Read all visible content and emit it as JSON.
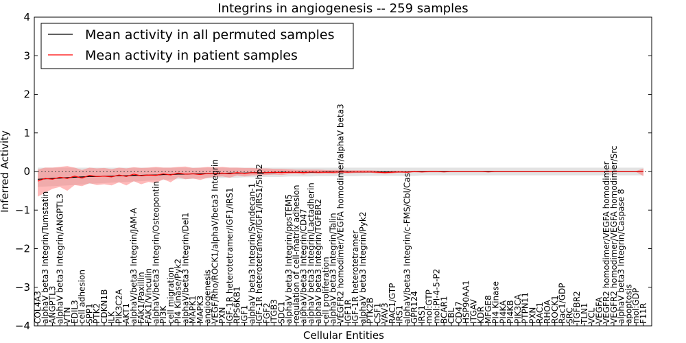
{
  "chart_data": {
    "type": "line",
    "title": "Integrins in angiogenesis -- 259 samples",
    "xlabel": "Cellular Entities",
    "ylabel": "Inferred Activity",
    "ylim": [
      -4,
      4
    ],
    "yticks": [
      -4,
      -3,
      -2,
      -1,
      0,
      1,
      2,
      3,
      4
    ],
    "ytick_labels": [
      "−4",
      "−3",
      "−2",
      "−1",
      "0",
      "1",
      "2",
      "3",
      "4"
    ],
    "grid": false,
    "legend_position": "top-left",
    "legend": [
      {
        "label": "Mean activity in all permuted samples",
        "color": "#000000"
      },
      {
        "label": "Mean activity in patient samples",
        "color": "#ff0000"
      }
    ],
    "categories": [
      "COL4A3",
      "alphaV beta3 Integrin/Tumstatin",
      "ANGPTL3",
      "alphaV beta3 Integrin/ANGPTL3",
      "VTN",
      "EDIL3",
      "cell adhesion",
      "SPP1",
      "PTK2",
      "CDKN1B",
      "ILK",
      "PIK3C2A",
      "AKT1",
      "alphaV/beta3 Integrin/JAM-A",
      "FAK1/Paxillin",
      "FAK1/Vinculin",
      "alphaV/beta3 Integrin/Osteopontin",
      "PI3K",
      "cell migration",
      "PI4 Kinase/Pyk2",
      "alphaV/beta3 Integrin/Del1",
      "MAPK1",
      "MAPK3",
      "angiogenesis",
      "VEGF/Rho/ROCK1/alphaV/beta3 Integrin",
      "PXN",
      "IGF-1R heterotetramer/IGF1/IRS1",
      "RPS6KB1",
      "IGF1",
      "alphaV beta3 Integrin/Syndecan-1",
      "IGF-1R heterotetramer/IGF1/IRS1/Shp2",
      "FGF2",
      "ITGB3",
      "SDC1",
      "alphaV beta3 Integrin/ppsTEM5",
      "regulation of cell-matrix adhesion",
      "alphaV/beta3 Integrin/CD47",
      "alphaV beta3 Integrin/Lactadherin",
      "alphaV beta3 Integrin/TGFBR2",
      "cell proliferation",
      "alphaV beta3 Integrin/Talin",
      "VEGFR2 homodimer/VEGFA homodimer/alphaV beta3",
      "IGF1R",
      "IGF-1R heterotetramer",
      "alphaV beta3 Integrin/Pyk2",
      "PTK2B",
      "CSF1",
      "VAV3",
      "RAC1/GTP",
      "IRS1",
      "alphaV/beta3 Integrin/c-FMS/Cbl/Cas",
      "GPR124",
      "IRS1",
      "mol:GTP",
      "mol:PI-4-5-P2",
      "BCAR1",
      "CBL",
      "CD47",
      "HSP90AA1",
      "ITGAV",
      "KDR",
      "MFGE8",
      "PI4 Kinase",
      "PI4KA",
      "PI4KB",
      "PIK3CA",
      "PTPN11",
      "PXN",
      "RAC1",
      "RHOA",
      "ROCK1",
      "Rac1/GDP",
      "SRC",
      "TGFBR2",
      "TLN1",
      "VCL",
      "VEGFA",
      "VEGFR2 homodimer/VEGFA homodimer",
      "VEGFR2 homodimer/VEGFA homodimer/Src",
      "alphaV beta3 Integrin/Caspase 8",
      "apoptosis",
      "mol:GDP",
      "F11R"
    ],
    "series": [
      {
        "name": "Mean activity in all permuted samples",
        "color": "#000000",
        "values": [
          -0.2,
          -0.19,
          -0.18,
          -0.17,
          -0.16,
          -0.15,
          -0.14,
          -0.13,
          -0.13,
          -0.12,
          -0.12,
          -0.11,
          -0.11,
          -0.1,
          -0.1,
          -0.09,
          -0.09,
          -0.08,
          -0.08,
          -0.07,
          -0.07,
          -0.06,
          -0.06,
          -0.05,
          -0.05,
          -0.05,
          -0.04,
          -0.04,
          -0.04,
          -0.03,
          -0.03,
          -0.03,
          -0.03,
          -0.02,
          -0.02,
          -0.02,
          -0.02,
          -0.02,
          -0.02,
          -0.01,
          -0.01,
          -0.01,
          -0.01,
          -0.01,
          -0.01,
          -0.01,
          -0.01,
          -0.01,
          -0.01,
          -0.01,
          -0.01,
          0,
          0,
          0,
          0,
          0,
          0,
          0,
          0,
          0,
          0,
          0,
          0,
          0,
          0,
          0,
          0,
          0,
          0,
          0,
          0,
          0,
          0,
          0,
          0,
          0,
          0,
          0,
          0,
          0,
          0,
          0,
          0
        ],
        "band_low": [
          -0.4,
          -0.39,
          -0.38,
          -0.37,
          -0.36,
          -0.35,
          -0.34,
          -0.32,
          -0.31,
          -0.3,
          -0.29,
          -0.28,
          -0.27,
          -0.26,
          -0.25,
          -0.24,
          -0.23,
          -0.22,
          -0.21,
          -0.2,
          -0.2,
          -0.19,
          -0.18,
          -0.18,
          -0.17,
          -0.17,
          -0.16,
          -0.16,
          -0.15,
          -0.15,
          -0.15,
          -0.14,
          -0.14,
          -0.14,
          -0.13,
          -0.13,
          -0.13,
          -0.13,
          -0.12,
          -0.12,
          -0.12,
          -0.12,
          -0.12,
          -0.12,
          -0.11,
          -0.11,
          -0.11,
          -0.11,
          -0.11,
          -0.11,
          -0.11,
          -0.11,
          -0.1,
          -0.1,
          -0.1,
          -0.1,
          -0.1,
          -0.1,
          -0.1,
          -0.1,
          -0.1,
          -0.1,
          -0.1,
          -0.1,
          -0.1,
          -0.1,
          -0.1,
          -0.1,
          -0.1,
          -0.1,
          -0.1,
          -0.1,
          -0.1,
          -0.1,
          -0.1,
          -0.1,
          -0.1,
          -0.1,
          -0.1,
          -0.1,
          -0.1,
          -0.1,
          -0.1
        ],
        "band_high": [
          0.1,
          0.1,
          0.1,
          0.1,
          0.1,
          0.1,
          0.1,
          0.1,
          0.1,
          0.1,
          0.1,
          0.1,
          0.1,
          0.1,
          0.1,
          0.1,
          0.1,
          0.1,
          0.1,
          0.1,
          0.1,
          0.1,
          0.1,
          0.1,
          0.1,
          0.1,
          0.1,
          0.1,
          0.1,
          0.1,
          0.1,
          0.1,
          0.1,
          0.1,
          0.1,
          0.1,
          0.1,
          0.1,
          0.1,
          0.1,
          0.1,
          0.1,
          0.1,
          0.1,
          0.1,
          0.1,
          0.1,
          0.1,
          0.1,
          0.1,
          0.1,
          0.1,
          0.1,
          0.1,
          0.1,
          0.1,
          0.1,
          0.1,
          0.1,
          0.1,
          0.1,
          0.1,
          0.1,
          0.1,
          0.1,
          0.1,
          0.1,
          0.1,
          0.1,
          0.1,
          0.1,
          0.1,
          0.1,
          0.1,
          0.1,
          0.1,
          0.1,
          0.1,
          0.1,
          0.1,
          0.1,
          0.1,
          0.1
        ]
      },
      {
        "name": "Mean activity in patient samples",
        "color": "#ff0000",
        "values": [
          -0.25,
          -0.18,
          -0.2,
          -0.15,
          -0.18,
          -0.12,
          -0.17,
          -0.1,
          -0.13,
          -0.12,
          -0.14,
          -0.09,
          -0.13,
          -0.07,
          -0.11,
          -0.09,
          -0.1,
          -0.06,
          -0.09,
          -0.04,
          -0.07,
          -0.06,
          -0.08,
          -0.05,
          -0.05,
          -0.04,
          -0.06,
          -0.03,
          -0.05,
          -0.03,
          -0.04,
          -0.03,
          -0.02,
          -0.03,
          -0.02,
          -0.02,
          -0.03,
          -0.01,
          -0.02,
          -0.02,
          -0.02,
          -0.01,
          -0.02,
          -0.01,
          -0.01,
          -0.01,
          -0.02,
          -0.03,
          -0.02,
          -0.01,
          -0.02,
          0,
          -0.01,
          0,
          0,
          -0.01,
          0,
          0,
          0,
          0,
          0,
          -0.01,
          0,
          0,
          0,
          0,
          0,
          0,
          0,
          0,
          0,
          0,
          0,
          0,
          0,
          0,
          0,
          0,
          0,
          0,
          0,
          0,
          0
        ],
        "band_low": [
          -0.65,
          -0.55,
          -0.45,
          -0.4,
          -0.5,
          -0.35,
          -0.38,
          -0.3,
          -0.35,
          -0.33,
          -0.36,
          -0.28,
          -0.36,
          -0.25,
          -0.33,
          -0.27,
          -0.3,
          -0.2,
          -0.28,
          -0.15,
          -0.2,
          -0.18,
          -0.22,
          -0.16,
          -0.14,
          -0.13,
          -0.16,
          -0.1,
          -0.13,
          -0.1,
          -0.1,
          -0.09,
          -0.08,
          -0.09,
          -0.07,
          -0.06,
          -0.08,
          -0.05,
          -0.06,
          -0.05,
          -0.06,
          -0.04,
          -0.05,
          -0.04,
          -0.04,
          -0.03,
          -0.05,
          -0.06,
          -0.05,
          -0.03,
          -0.04,
          -0.02,
          -0.03,
          -0.02,
          -0.02,
          -0.02,
          -0.01,
          -0.01,
          -0.01,
          -0.01,
          -0.01,
          -0.02,
          -0.01,
          -0.01,
          -0.01,
          -0.01,
          -0.01,
          -0.01,
          -0.01,
          -0.01,
          -0.01,
          -0.01,
          -0.01,
          -0.01,
          -0.01,
          -0.01,
          -0.01,
          -0.01,
          -0.01,
          -0.01,
          -0.01,
          -0.01,
          -0.12
        ],
        "band_high": [
          0.05,
          0.1,
          0.1,
          0.12,
          0.14,
          0.1,
          0.04,
          0.1,
          0.08,
          0.09,
          0.06,
          0.1,
          0.08,
          0.11,
          0.09,
          0.1,
          0.12,
          0.1,
          0.1,
          0.12,
          0.13,
          0.09,
          0.1,
          0.12,
          0.11,
          0.12,
          0.1,
          0.1,
          0.09,
          0.09,
          0.08,
          0.08,
          0.07,
          0.07,
          0.06,
          0.05,
          0.05,
          0.05,
          0.05,
          0.04,
          0.04,
          0.04,
          0.03,
          0.03,
          0.03,
          0.03,
          0.02,
          0.01,
          0.02,
          0.02,
          0.01,
          0.02,
          0.01,
          0.02,
          0.02,
          0.01,
          0.01,
          0.01,
          0.01,
          0.01,
          0.01,
          0.01,
          0.01,
          0.01,
          0.01,
          0.01,
          0.01,
          0.01,
          0.01,
          0.01,
          0.01,
          0.01,
          0.01,
          0.01,
          0.01,
          0.01,
          0.01,
          0.01,
          0.01,
          0.01,
          0.01,
          0.01,
          0.08
        ]
      }
    ]
  }
}
